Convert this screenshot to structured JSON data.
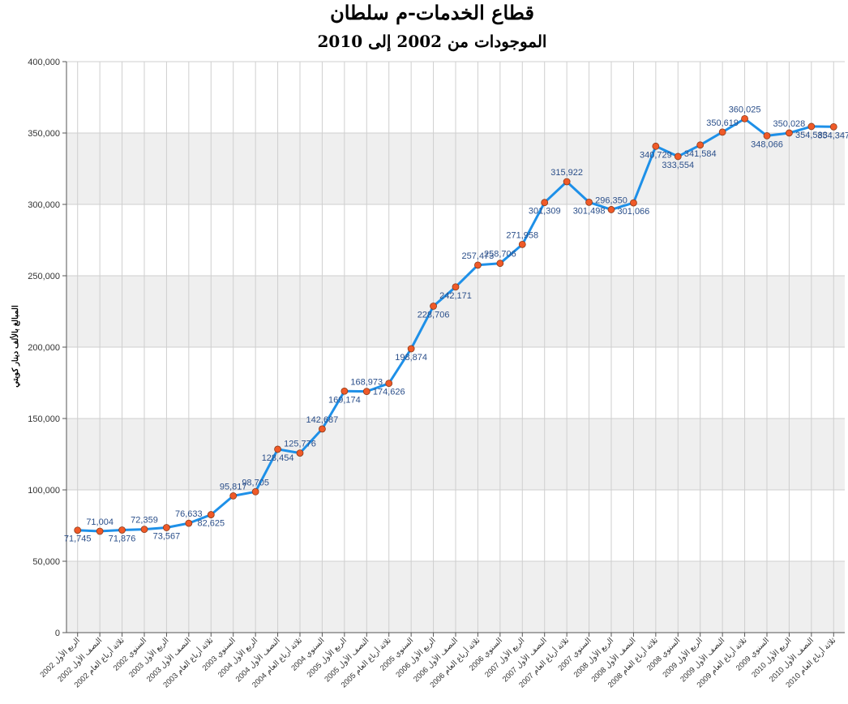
{
  "chart_data": {
    "type": "line",
    "title": "قطاع الخدمات-م سلطان",
    "subtitle": "الموجودات من 2002 إلى 2010",
    "ylabel": "المبالغ بالألف دينار كويتي",
    "xlabel": "",
    "ylim": [
      0,
      400000
    ],
    "yticks": [
      "0",
      "50,000",
      "100,000",
      "150,000",
      "200,000",
      "250,000",
      "300,000",
      "350,000",
      "400,000"
    ],
    "grid": true,
    "line_color": "#1e90e8",
    "marker_color": "#f05a28",
    "band_color": "#efefef",
    "categories": [
      "الربع الأول 2002",
      "النصف الأول 2002",
      "ثلاثة أرباع العام 2002",
      "السنوي 2002",
      "الربع الأول 2003",
      "النصف الأول 2003",
      "ثلاثة أرباع العام 2003",
      "السنوي 2003",
      "الربع الأول 2004",
      "النصف الأول 2004",
      "ثلاثة أرباع العام 2004",
      "السنوي 2004",
      "الربع الأول 2005",
      "النصف الأول 2005",
      "ثلاثة أرباع العام 2005",
      "السنوي 2005",
      "الربع الأول 2006",
      "النصف الأول 2006",
      "ثلاثة أرباع العام 2006",
      "السنوي 2006",
      "الربع الأول 2007",
      "النصف الأول 2007",
      "ثلاثة أرباع العام 2007",
      "السنوي 2007",
      "الربع الأول 2008",
      "النصف الأول 2008",
      "ثلاثة أرباع العام 2008",
      "السنوي 2008",
      "الربع الأول 2009",
      "النصف الأول 2009",
      "ثلاثة أرباع العام 2009",
      "السنوي 2009",
      "الربع الأول 2010",
      "النصف الأول 2010",
      "ثلاثة أرباع العام 2010"
    ],
    "values": [
      71745,
      71004,
      71876,
      72359,
      73567,
      76633,
      82625,
      95817,
      98705,
      128454,
      125776,
      142687,
      169174,
      168973,
      174626,
      198874,
      228706,
      242171,
      257473,
      258706,
      271958,
      301309,
      315922,
      301498,
      296350,
      301066,
      340729,
      333554,
      341584,
      350619,
      360025,
      348066,
      350028,
      354583,
      354347
    ],
    "labels": [
      "71,745",
      "71,004",
      "71,876",
      "72,359",
      "73,567",
      "76,633",
      "82,625",
      "95,817",
      "98,705",
      "128,454",
      "125,776",
      "142,687",
      "169,174",
      "168,973",
      "174,626",
      "198,874",
      "228,706",
      "242,171",
      "257,473",
      "258,706",
      "271,958",
      "301,309",
      "315,922",
      "301,498",
      "296,350",
      "301,066",
      "340,729",
      "333,554",
      "341,584",
      "350,619",
      "360,025",
      "348,066",
      "350,028",
      "354,583",
      "354,347"
    ]
  }
}
